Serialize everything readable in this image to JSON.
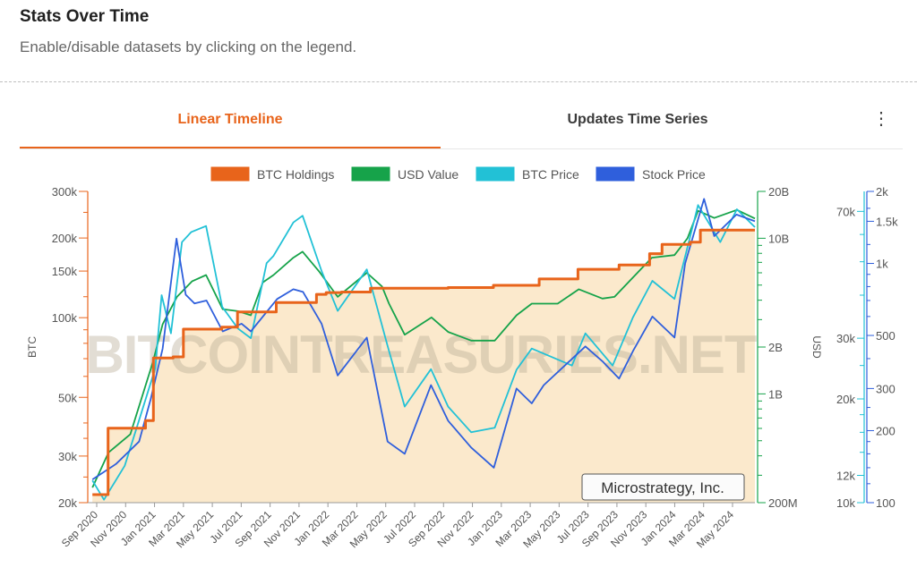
{
  "header": {
    "title": "Stats Over Time",
    "subtitle": "Enable/disable datasets by clicking on the legend."
  },
  "tabs": [
    {
      "label": "Linear Timeline",
      "active": true
    },
    {
      "label": "Updates Time Series",
      "active": false
    }
  ],
  "menu_icon": "kebab-vertical-icon",
  "chart_data": {
    "type": "line",
    "watermark": "BITCOINTREASURIES.NET",
    "company_label": "Microstrategy, Inc.",
    "legend": {
      "position": "top"
    },
    "x_tick_labels": [
      "Sep 2020",
      "Nov 2020",
      "Jan 2021",
      "Mar 2021",
      "May 2021",
      "Jul 2021",
      "Sep 2021",
      "Nov 2021",
      "Jan 2022",
      "Mar 2022",
      "May 2022",
      "Jul 2022",
      "Sep 2022",
      "Nov 2022",
      "Jan 2023",
      "Mar 2023",
      "May 2023",
      "Jul 2023",
      "Sep 2023",
      "Nov 2023",
      "Jan 2024",
      "Mar 2024",
      "May 2024"
    ],
    "x_range": [
      "2020-08-01",
      "2024-07-15"
    ],
    "axes": {
      "btc": {
        "label": "BTC",
        "scale": "log",
        "range": [
          20000,
          300000
        ],
        "ticks": [
          20000,
          30000,
          50000,
          100000,
          150000,
          200000,
          300000
        ],
        "tick_labels": [
          "20k",
          "30k",
          "50k",
          "100k",
          "150k",
          "200k",
          "300k"
        ],
        "color": "#e8641b"
      },
      "usd": {
        "label": "USD",
        "scale": "log",
        "range": [
          200000000,
          20000000000
        ],
        "ticks": [
          200000000,
          1000000000,
          2000000000,
          10000000000,
          20000000000
        ],
        "tick_labels": [
          "200M",
          "1B",
          "2B",
          "10B",
          "20B"
        ],
        "color": "#16a34a"
      },
      "btc_price": {
        "scale": "log",
        "range": [
          10000,
          80000
        ],
        "ticks": [
          10000,
          12000,
          20000,
          30000,
          70000
        ],
        "tick_labels": [
          "10k",
          "12k",
          "20k",
          "30k",
          "70k"
        ],
        "color": "#22c1d6"
      },
      "stock_price": {
        "scale": "log",
        "range": [
          100,
          2000
        ],
        "ticks": [
          100,
          200,
          300,
          500,
          1000,
          1500,
          2000
        ],
        "tick_labels": [
          "100",
          "200",
          "300",
          "500",
          "1k",
          "1.5k",
          "2k"
        ],
        "color": "#2f5fdc"
      }
    },
    "series": [
      {
        "name": "BTC Holdings",
        "color": "#e8641b",
        "axis": "btc",
        "step": true,
        "fill": "#fbe9cc",
        "points": [
          [
            "2020-08-11",
            21454
          ],
          [
            "2020-09-14",
            38250
          ],
          [
            "2020-12-04",
            40824
          ],
          [
            "2020-12-21",
            70470
          ],
          [
            "2021-02-02",
            71079
          ],
          [
            "2021-02-24",
            90531
          ],
          [
            "2021-05-18",
            92079
          ],
          [
            "2021-06-21",
            105085
          ],
          [
            "2021-09-13",
            114042
          ],
          [
            "2021-12-09",
            122478
          ],
          [
            "2021-12-30",
            124391
          ],
          [
            "2022-02-01",
            125051
          ],
          [
            "2022-04-05",
            129218
          ],
          [
            "2022-09-20",
            130000
          ],
          [
            "2022-12-27",
            132500
          ],
          [
            "2023-04-05",
            140000
          ],
          [
            "2023-06-28",
            152333
          ],
          [
            "2023-09-25",
            158245
          ],
          [
            "2023-11-30",
            174530
          ],
          [
            "2023-12-27",
            189150
          ],
          [
            "2024-02-26",
            193000
          ],
          [
            "2024-03-19",
            214246
          ],
          [
            "2024-07-15",
            214246
          ]
        ]
      },
      {
        "name": "USD Value",
        "color": "#16a34a",
        "axis": "usd",
        "points": [
          [
            "2020-08-11",
            250000000
          ],
          [
            "2020-09-15",
            420000000
          ],
          [
            "2020-11-01",
            550000000
          ],
          [
            "2020-12-20",
            1600000000
          ],
          [
            "2021-01-10",
            2800000000
          ],
          [
            "2021-02-10",
            4200000000
          ],
          [
            "2021-03-15",
            5300000000
          ],
          [
            "2021-04-14",
            5800000000
          ],
          [
            "2021-05-20",
            3500000000
          ],
          [
            "2021-06-22",
            3400000000
          ],
          [
            "2021-07-20",
            3200000000
          ],
          [
            "2021-08-15",
            5200000000
          ],
          [
            "2021-09-07",
            5800000000
          ],
          [
            "2021-10-20",
            7500000000
          ],
          [
            "2021-11-09",
            8200000000
          ],
          [
            "2021-12-15",
            6100000000
          ],
          [
            "2022-01-24",
            4200000000
          ],
          [
            "2022-03-28",
            6000000000
          ],
          [
            "2022-04-30",
            4900000000
          ],
          [
            "2022-05-15",
            3800000000
          ],
          [
            "2022-06-18",
            2400000000
          ],
          [
            "2022-08-15",
            3100000000
          ],
          [
            "2022-09-20",
            2500000000
          ],
          [
            "2022-11-09",
            2200000000
          ],
          [
            "2022-12-30",
            2200000000
          ],
          [
            "2023-02-15",
            3200000000
          ],
          [
            "2023-03-20",
            3800000000
          ],
          [
            "2023-05-15",
            3800000000
          ],
          [
            "2023-06-30",
            4700000000
          ],
          [
            "2023-08-20",
            4100000000
          ],
          [
            "2023-09-15",
            4200000000
          ],
          [
            "2023-10-25",
            5600000000
          ],
          [
            "2023-12-05",
            7500000000
          ],
          [
            "2024-01-23",
            7800000000
          ],
          [
            "2024-02-20",
            10000000000
          ],
          [
            "2024-03-14",
            15000000000
          ],
          [
            "2024-04-18",
            13500000000
          ],
          [
            "2024-06-06",
            15200000000
          ],
          [
            "2024-07-15",
            13400000000
          ]
        ]
      },
      {
        "name": "BTC Price",
        "color": "#22c1d6",
        "axis": "btc_price",
        "points": [
          [
            "2020-08-11",
            11600
          ],
          [
            "2020-09-05",
            10200
          ],
          [
            "2020-10-20",
            12800
          ],
          [
            "2020-11-25",
            18200
          ],
          [
            "2020-12-25",
            24500
          ],
          [
            "2021-01-08",
            40000
          ],
          [
            "2021-01-28",
            31000
          ],
          [
            "2021-02-21",
            57000
          ],
          [
            "2021-03-13",
            61000
          ],
          [
            "2021-04-14",
            63500
          ],
          [
            "2021-05-19",
            37000
          ],
          [
            "2021-06-22",
            32000
          ],
          [
            "2021-07-20",
            30000
          ],
          [
            "2021-08-23",
            49500
          ],
          [
            "2021-09-07",
            52000
          ],
          [
            "2021-10-20",
            65000
          ],
          [
            "2021-11-09",
            68000
          ],
          [
            "2021-12-20",
            47000
          ],
          [
            "2022-01-24",
            36000
          ],
          [
            "2022-03-28",
            47500
          ],
          [
            "2022-05-12",
            28500
          ],
          [
            "2022-06-18",
            19000
          ],
          [
            "2022-08-14",
            24400
          ],
          [
            "2022-09-20",
            19000
          ],
          [
            "2022-11-09",
            16000
          ],
          [
            "2022-12-30",
            16500
          ],
          [
            "2023-02-15",
            24300
          ],
          [
            "2023-03-20",
            28000
          ],
          [
            "2023-06-15",
            25000
          ],
          [
            "2023-07-14",
            31000
          ],
          [
            "2023-09-11",
            25000
          ],
          [
            "2023-10-25",
            34500
          ],
          [
            "2023-12-06",
            44000
          ],
          [
            "2024-01-23",
            39000
          ],
          [
            "2024-03-14",
            73000
          ],
          [
            "2024-05-01",
            57000
          ],
          [
            "2024-06-06",
            71000
          ],
          [
            "2024-07-15",
            63000
          ]
        ]
      },
      {
        "name": "Stock Price",
        "color": "#2f5fdc",
        "axis": "stock_price",
        "points": [
          [
            "2020-08-11",
            125
          ],
          [
            "2020-10-01",
            145
          ],
          [
            "2020-11-20",
            180
          ],
          [
            "2020-12-15",
            270
          ],
          [
            "2021-01-10",
            440
          ],
          [
            "2021-02-09",
            1270
          ],
          [
            "2021-03-01",
            740
          ],
          [
            "2021-03-20",
            680
          ],
          [
            "2021-04-15",
            700
          ],
          [
            "2021-05-20",
            520
          ],
          [
            "2021-06-30",
            560
          ],
          [
            "2021-07-20",
            520
          ],
          [
            "2021-09-15",
            710
          ],
          [
            "2021-10-20",
            780
          ],
          [
            "2021-11-10",
            760
          ],
          [
            "2021-12-20",
            560
          ],
          [
            "2022-01-24",
            340
          ],
          [
            "2022-03-28",
            490
          ],
          [
            "2022-05-12",
            180
          ],
          [
            "2022-06-18",
            160
          ],
          [
            "2022-08-14",
            310
          ],
          [
            "2022-09-20",
            220
          ],
          [
            "2022-11-09",
            170
          ],
          [
            "2022-12-28",
            140
          ],
          [
            "2023-02-15",
            300
          ],
          [
            "2023-03-20",
            260
          ],
          [
            "2023-04-15",
            310
          ],
          [
            "2023-07-14",
            450
          ],
          [
            "2023-08-20",
            390
          ],
          [
            "2023-09-25",
            330
          ],
          [
            "2023-10-25",
            430
          ],
          [
            "2023-12-06",
            600
          ],
          [
            "2024-01-23",
            490
          ],
          [
            "2024-02-15",
            1000
          ],
          [
            "2024-03-27",
            1860
          ],
          [
            "2024-04-18",
            1300
          ],
          [
            "2024-06-05",
            1600
          ],
          [
            "2024-07-15",
            1500
          ]
        ]
      }
    ]
  }
}
